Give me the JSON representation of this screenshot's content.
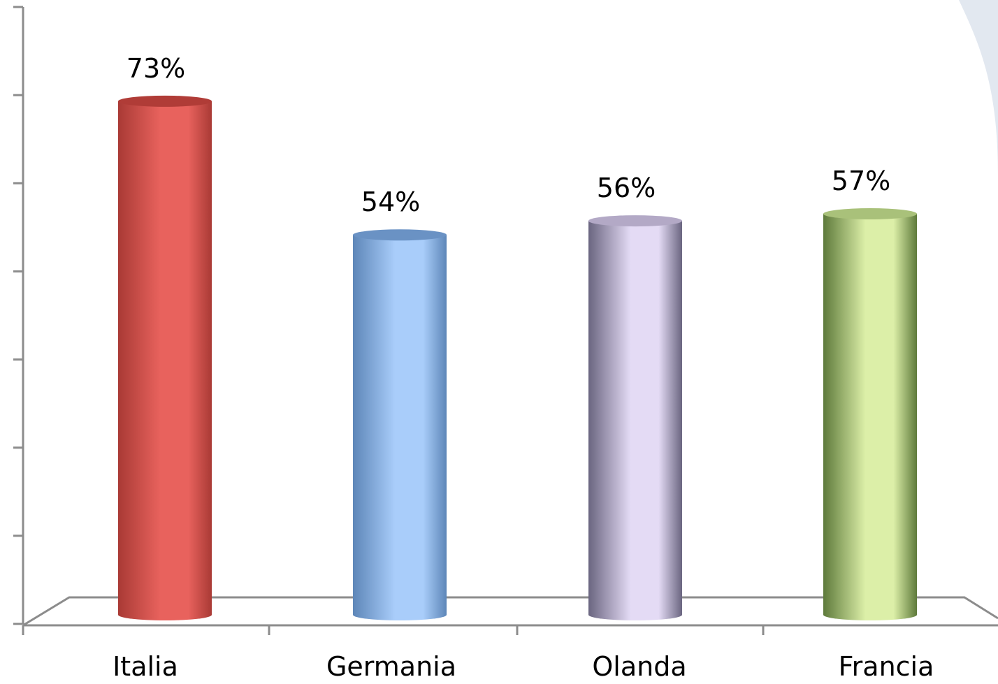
{
  "chart_data": {
    "type": "bar",
    "style": "3d-cylinder",
    "categories": [
      "Italia",
      "Germania",
      "Olanda",
      "Francia"
    ],
    "values": [
      73,
      54,
      56,
      57
    ],
    "value_labels": [
      "73%",
      "54%",
      "56%",
      "57%"
    ],
    "unit": "%",
    "ylim": [
      0,
      70
    ],
    "y_ticks": [
      0,
      10,
      20,
      30,
      40,
      50,
      60,
      70
    ],
    "y_tick_labels_visible": false,
    "grid": false,
    "legend": "none",
    "colors": {
      "Italia": [
        "#a93a35",
        "#e8625d",
        "#b03c37"
      ],
      "Germania": [
        "#5d86b8",
        "#a9cdfa",
        "#6a92c4"
      ],
      "Olanda": [
        "#6a6580",
        "#e4dbf5",
        "#b3a9c6"
      ],
      "Francia": [
        "#5e7a3b",
        "#dcefa8",
        "#a9c17a"
      ],
      "axis": "#8c8c8c"
    }
  }
}
